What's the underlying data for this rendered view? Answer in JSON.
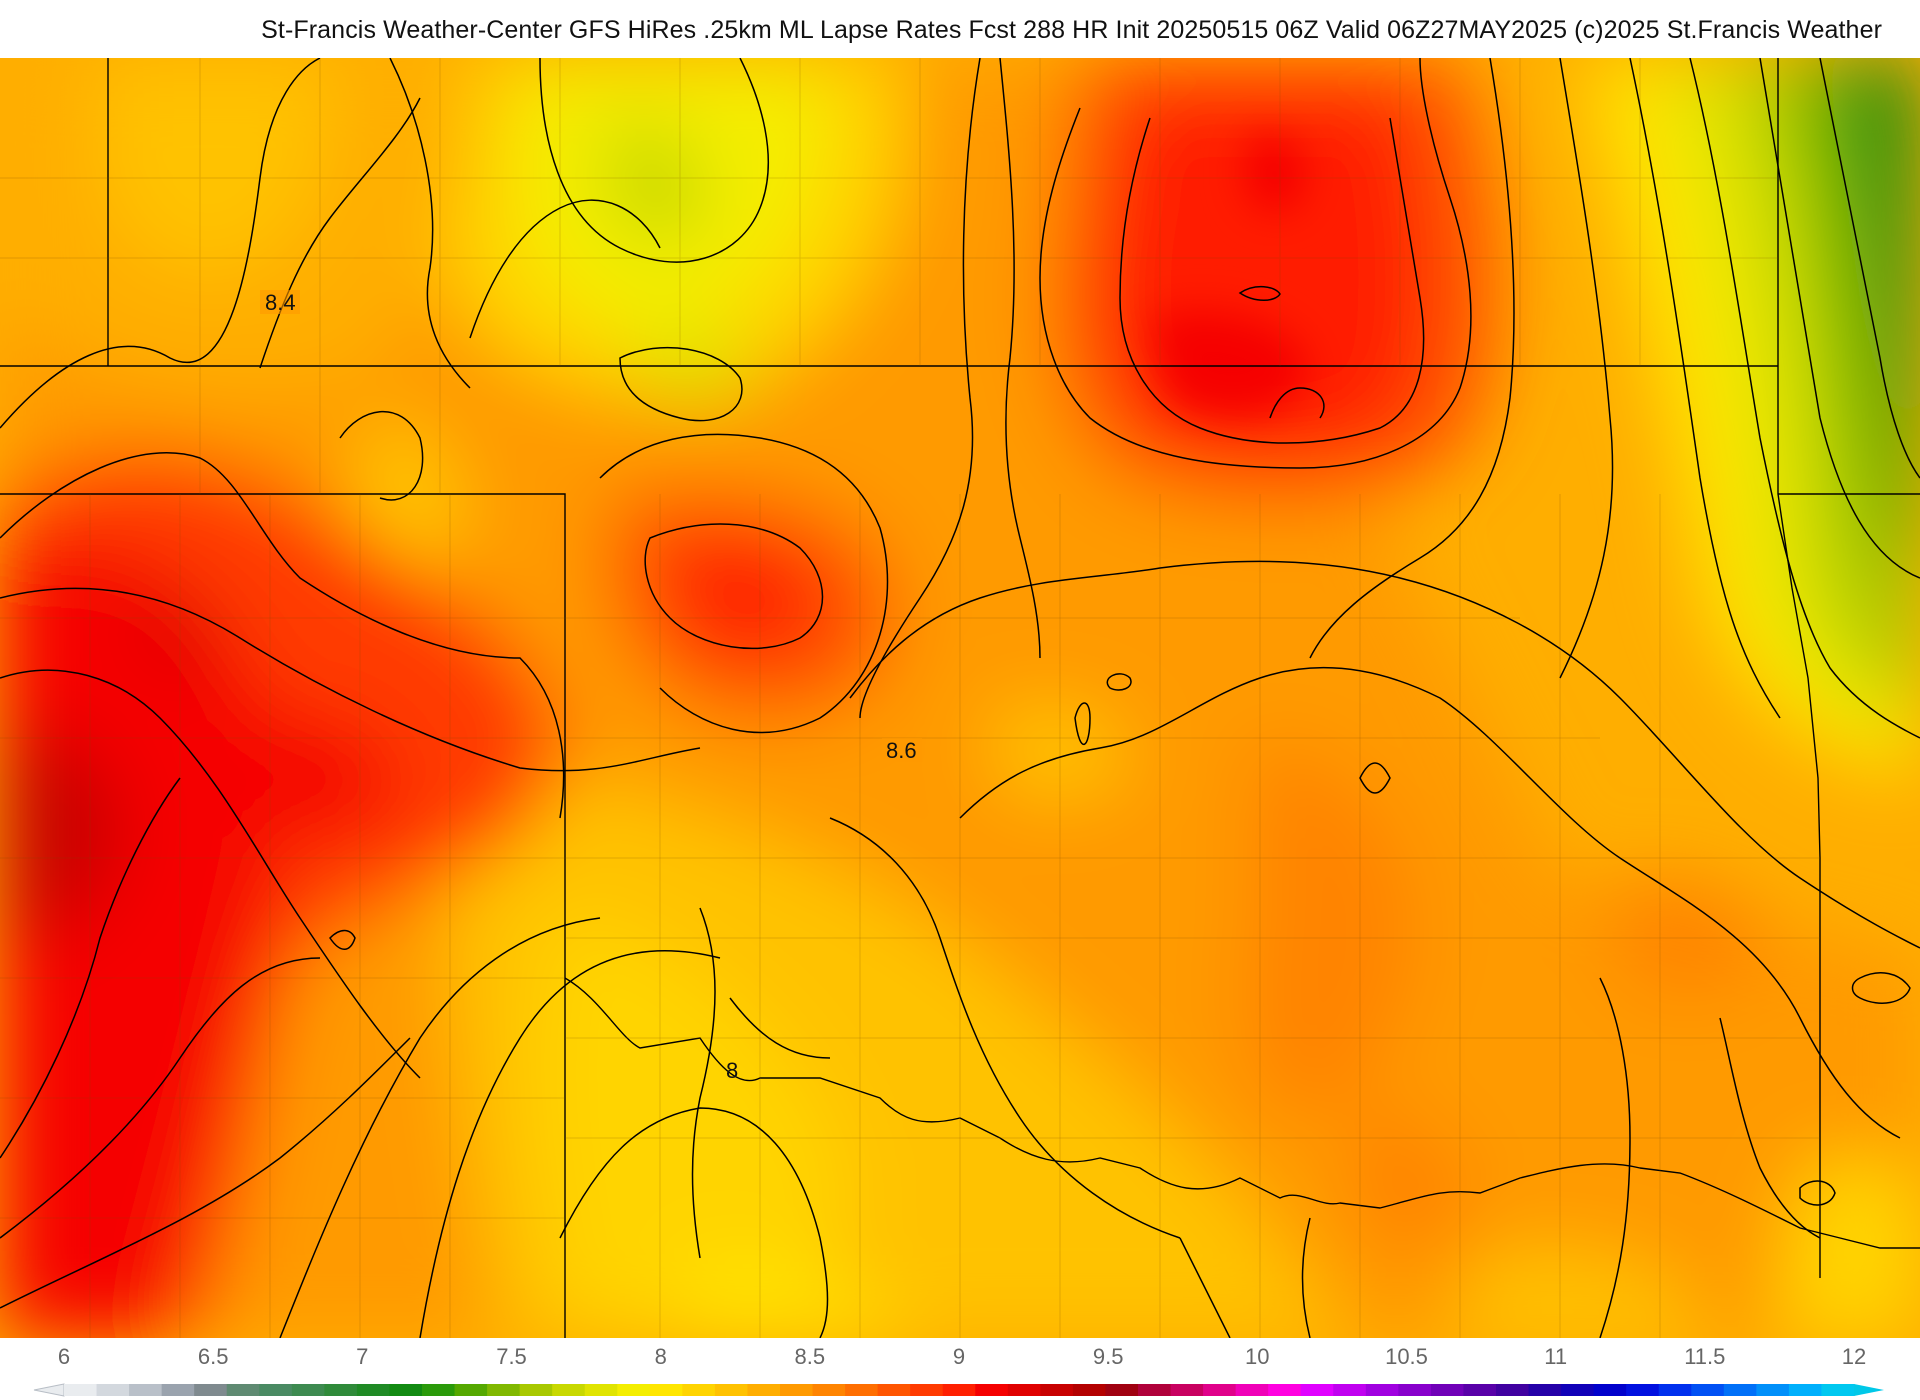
{
  "header": {
    "title": "St-Francis Weather-Center GFS HiRes .25km ML Lapse Rates  Fcst 288 HR Init 20250515 06Z  Valid 06Z27MAY2025    (c)2025 St.Francis Weather"
  },
  "map": {
    "contour_labels": [
      "8.4",
      "8.6",
      "8"
    ]
  },
  "legend": {
    "ticks": [
      "6",
      "6.5",
      "7",
      "7.5",
      "8",
      "8.5",
      "9",
      "9.5",
      "10",
      "10.5",
      "11",
      "11.5",
      "12"
    ],
    "colors": [
      "#e9ecef",
      "#d3d8de",
      "#b9c0c9",
      "#9aa3ae",
      "#7f8a8f",
      "#5f8a72",
      "#4a8a63",
      "#3d8a50",
      "#2f8a3a",
      "#1f8a25",
      "#128a12",
      "#2a9a0a",
      "#55a800",
      "#80b800",
      "#a8c800",
      "#c8d800",
      "#e0e400",
      "#f4ee00",
      "#ffe600",
      "#ffd400",
      "#ffc200",
      "#ffae00",
      "#ff9a00",
      "#ff8400",
      "#ff6e00",
      "#ff5500",
      "#ff3a00",
      "#ff1f00",
      "#f50000",
      "#e00000",
      "#c80000",
      "#b40000",
      "#a00010",
      "#b0003a",
      "#c80060",
      "#e0008a",
      "#f000b8",
      "#ff00e0",
      "#e000ff",
      "#c000f0",
      "#a000e0",
      "#8800cc",
      "#7000b8",
      "#5800a8",
      "#4000a0",
      "#2400a8",
      "#1000b8",
      "#0000cc",
      "#0010e0",
      "#0030ee",
      "#0050f4",
      "#0070f8",
      "#0090fa",
      "#00b0fc",
      "#00c8f0"
    ],
    "left_arrow_color": "#e9ecef",
    "right_arrow_color": "#00c8e8"
  }
}
